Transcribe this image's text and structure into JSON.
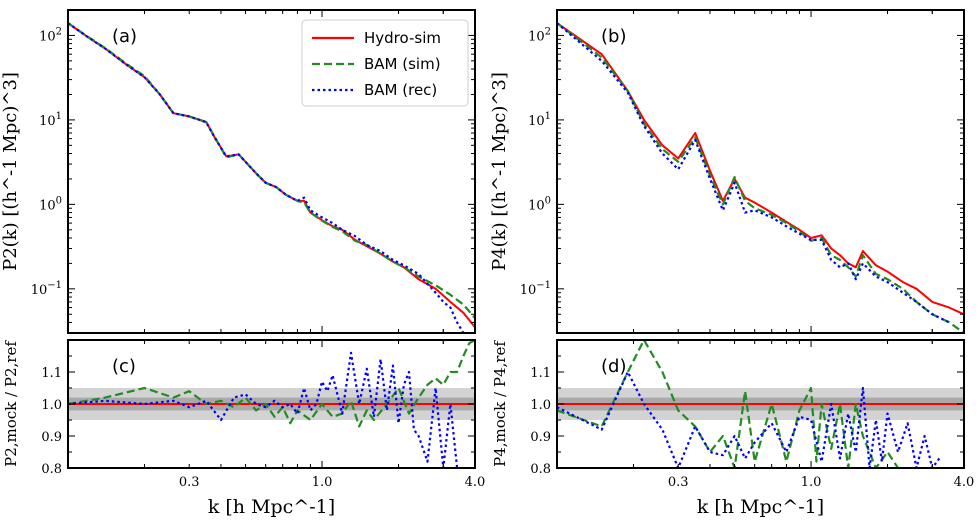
{
  "chart_data": [
    {
      "id": "a",
      "type": "line",
      "panel_label": "(a)",
      "x_scale": "log",
      "y_scale": "log",
      "xlim": [
        0.1,
        4.0
      ],
      "ylim": [
        0.03,
        200
      ],
      "ylabel": "P2(k) [(h^-1 Mpc)^3]",
      "y_ticks": [
        {
          "v": 100,
          "b": "10",
          "e": "2"
        },
        {
          "v": 10,
          "b": "10",
          "e": "1"
        },
        {
          "v": 1,
          "b": "10",
          "e": "0"
        },
        {
          "v": 0.1,
          "b": "10",
          "e": "−1"
        }
      ],
      "legend": {
        "position": "top-right",
        "entries": [
          "Hydro-sim",
          "BAM (sim)",
          "BAM (rec)"
        ]
      },
      "series": [
        {
          "name": "Hydro-sim",
          "color": "#ff0000",
          "style": "solid",
          "x": [
            0.1,
            0.12,
            0.14,
            0.17,
            0.2,
            0.23,
            0.26,
            0.3,
            0.35,
            0.38,
            0.42,
            0.47,
            0.52,
            0.56,
            0.6,
            0.66,
            0.72,
            0.8,
            0.85,
            0.9,
            1.0,
            1.1,
            1.2,
            1.35,
            1.5,
            1.7,
            1.9,
            2.1,
            2.4,
            2.8,
            3.2,
            3.6,
            4.0
          ],
          "y": [
            140,
            95,
            70,
            45,
            32,
            20,
            12,
            11,
            9.5,
            6,
            3.7,
            3.9,
            2.8,
            2.2,
            1.8,
            1.6,
            1.3,
            1.1,
            1.1,
            0.8,
            0.65,
            0.55,
            0.5,
            0.38,
            0.32,
            0.26,
            0.21,
            0.18,
            0.13,
            0.1,
            0.07,
            0.052,
            0.035
          ]
        },
        {
          "name": "BAM (sim)",
          "color": "#228b22",
          "style": "dashed",
          "x": [
            0.1,
            0.12,
            0.14,
            0.17,
            0.2,
            0.23,
            0.26,
            0.3,
            0.35,
            0.38,
            0.42,
            0.47,
            0.52,
            0.56,
            0.6,
            0.66,
            0.72,
            0.8,
            0.85,
            0.9,
            1.0,
            1.1,
            1.2,
            1.35,
            1.5,
            1.7,
            1.9,
            2.1,
            2.4,
            2.8,
            3.2,
            3.6,
            4.0
          ],
          "y": [
            140,
            96,
            71,
            46,
            33,
            20,
            12,
            11,
            9.4,
            6.1,
            3.6,
            3.9,
            2.8,
            2.2,
            1.8,
            1.6,
            1.3,
            1.1,
            1.05,
            0.8,
            0.64,
            0.54,
            0.48,
            0.37,
            0.33,
            0.26,
            0.21,
            0.18,
            0.14,
            0.11,
            0.085,
            0.065,
            0.045
          ]
        },
        {
          "name": "BAM (rec)",
          "color": "#0000ff",
          "style": "dotted",
          "x": [
            0.1,
            0.12,
            0.14,
            0.17,
            0.2,
            0.23,
            0.26,
            0.3,
            0.35,
            0.38,
            0.42,
            0.47,
            0.52,
            0.56,
            0.6,
            0.66,
            0.72,
            0.8,
            0.85,
            0.9,
            1.0,
            1.1,
            1.2,
            1.35,
            1.5,
            1.7,
            1.9,
            2.1,
            2.4,
            2.8,
            3.0,
            3.2,
            3.4,
            3.6
          ],
          "y": [
            140,
            95,
            70,
            45,
            32,
            20,
            12,
            11,
            9.4,
            6,
            3.7,
            3.9,
            2.8,
            2.2,
            1.8,
            1.6,
            1.3,
            1.1,
            1.2,
            0.85,
            0.7,
            0.6,
            0.5,
            0.42,
            0.33,
            0.28,
            0.22,
            0.19,
            0.15,
            0.09,
            0.07,
            0.06,
            0.04,
            0.03
          ]
        }
      ]
    },
    {
      "id": "b",
      "type": "line",
      "panel_label": "(b)",
      "x_scale": "log",
      "y_scale": "log",
      "xlim": [
        0.1,
        4.0
      ],
      "ylim": [
        0.03,
        200
      ],
      "ylabel": "P4(k) [(h^-1 Mpc)^3]",
      "y_ticks": [
        {
          "v": 100,
          "b": "10",
          "e": "2"
        },
        {
          "v": 10,
          "b": "10",
          "e": "1"
        },
        {
          "v": 1,
          "b": "10",
          "e": "0"
        },
        {
          "v": 0.1,
          "b": "10",
          "e": "−1"
        }
      ],
      "series": [
        {
          "name": "Hydro-sim",
          "color": "#ff0000",
          "style": "solid",
          "x": [
            0.1,
            0.15,
            0.19,
            0.22,
            0.26,
            0.3,
            0.35,
            0.4,
            0.45,
            0.5,
            0.55,
            0.6,
            0.7,
            0.8,
            0.9,
            1.0,
            1.1,
            1.2,
            1.3,
            1.4,
            1.5,
            1.6,
            1.8,
            2.0,
            2.3,
            2.6,
            3.0,
            3.5,
            4.0
          ],
          "y": [
            140,
            60,
            22,
            10,
            5,
            3.5,
            7,
            2.5,
            1.1,
            2,
            1.2,
            1.05,
            0.8,
            0.62,
            0.5,
            0.4,
            0.43,
            0.3,
            0.25,
            0.2,
            0.18,
            0.28,
            0.19,
            0.16,
            0.12,
            0.1,
            0.07,
            0.06,
            0.05
          ]
        },
        {
          "name": "BAM (sim)",
          "color": "#228b22",
          "style": "dashed",
          "x": [
            0.1,
            0.15,
            0.19,
            0.22,
            0.26,
            0.3,
            0.35,
            0.4,
            0.45,
            0.5,
            0.55,
            0.6,
            0.7,
            0.8,
            0.9,
            1.0,
            1.1,
            1.2,
            1.3,
            1.4,
            1.5,
            1.6,
            1.8,
            2.0,
            2.3,
            2.6,
            3.0,
            3.5,
            4.0
          ],
          "y": [
            140,
            55,
            22,
            9,
            4.5,
            3.2,
            6.2,
            2.2,
            1.0,
            2.1,
            1.1,
            0.9,
            0.75,
            0.6,
            0.48,
            0.37,
            0.4,
            0.25,
            0.22,
            0.18,
            0.14,
            0.25,
            0.15,
            0.13,
            0.1,
            0.07,
            0.05,
            0.04,
            0.03
          ]
        },
        {
          "name": "BAM (rec)",
          "color": "#0000ff",
          "style": "dotted",
          "x": [
            0.1,
            0.15,
            0.19,
            0.22,
            0.26,
            0.3,
            0.35,
            0.4,
            0.45,
            0.5,
            0.55,
            0.6,
            0.7,
            0.8,
            0.9,
            1.0,
            1.1,
            1.2,
            1.3,
            1.4,
            1.5,
            1.6,
            1.8,
            2.0,
            2.3,
            2.6,
            3.0,
            3.5
          ],
          "y": [
            140,
            50,
            21,
            8.5,
            4,
            2.6,
            5.8,
            2.0,
            0.85,
            1.8,
            0.8,
            0.85,
            0.7,
            0.55,
            0.45,
            0.38,
            0.38,
            0.22,
            0.18,
            0.2,
            0.13,
            0.2,
            0.14,
            0.12,
            0.09,
            0.07,
            0.05,
            0.04
          ]
        }
      ]
    },
    {
      "id": "c",
      "type": "line",
      "panel_label": "(c)",
      "x_scale": "log",
      "y_scale": "linear",
      "xlim": [
        0.1,
        4.0
      ],
      "ylim": [
        0.8,
        1.2
      ],
      "xlabel": "k [h Mpc^-1]",
      "ylabel": "P2,mock / P2,ref",
      "x_ticks": [
        0.3,
        1.0,
        4.0
      ],
      "x_tick_labels": [
        "0.3",
        "1.0",
        "4.0"
      ],
      "y_ticks": [
        0.8,
        0.9,
        1.0,
        1.1
      ],
      "y_tick_labels": [
        "0.8",
        "0.9",
        "1.0",
        "1.1"
      ],
      "bands": [
        {
          "range": [
            0.95,
            1.05
          ],
          "color": "#d3d3d3"
        },
        {
          "range": [
            0.98,
            1.02
          ],
          "color": "#a9a9a9"
        }
      ],
      "series": [
        {
          "name": "Hydro-sim",
          "color": "#ff0000",
          "style": "solid",
          "x": [
            0.1,
            4.0
          ],
          "y": [
            1.0,
            1.0
          ]
        },
        {
          "name": "BAM (sim)",
          "color": "#228b22",
          "style": "dashed",
          "x": [
            0.1,
            0.14,
            0.2,
            0.26,
            0.3,
            0.35,
            0.4,
            0.45,
            0.5,
            0.55,
            0.6,
            0.65,
            0.7,
            0.75,
            0.8,
            0.9,
            1.0,
            1.1,
            1.2,
            1.3,
            1.4,
            1.5,
            1.6,
            1.8,
            2.0,
            2.2,
            2.4,
            2.6,
            2.8,
            3.0,
            3.2,
            3.4,
            3.6,
            3.8,
            4.0
          ],
          "y": [
            1.0,
            1.02,
            1.05,
            1.02,
            1.04,
            1.0,
            1.01,
            0.99,
            1.02,
            0.98,
            1.0,
            0.96,
            0.99,
            0.94,
            0.98,
            0.95,
            1.0,
            0.96,
            0.97,
            1.01,
            0.93,
            0.98,
            0.95,
            1.0,
            1.05,
            0.97,
            1.02,
            1.06,
            1.08,
            1.06,
            1.1,
            1.1,
            1.15,
            1.19,
            1.2
          ]
        },
        {
          "name": "BAM (rec)",
          "color": "#0000ff",
          "style": "dotted",
          "x": [
            0.1,
            0.14,
            0.2,
            0.26,
            0.3,
            0.35,
            0.4,
            0.45,
            0.5,
            0.55,
            0.6,
            0.65,
            0.7,
            0.75,
            0.8,
            0.85,
            0.9,
            0.95,
            1.0,
            1.05,
            1.1,
            1.2,
            1.3,
            1.4,
            1.5,
            1.6,
            1.7,
            1.8,
            1.9,
            2.0,
            2.1,
            2.2,
            2.3,
            2.4,
            2.6,
            2.8,
            3.0,
            3.2,
            3.4
          ],
          "y": [
            1.0,
            1.01,
            1.0,
            1.01,
            0.99,
            1.01,
            0.95,
            1.02,
            1.03,
            1.0,
            0.99,
            1.01,
            0.99,
            1.0,
            0.97,
            1.05,
            0.98,
            1.0,
            1.07,
            1.04,
            1.09,
            0.97,
            1.16,
            1.0,
            1.11,
            0.96,
            1.14,
            0.98,
            1.12,
            0.94,
            1.06,
            1.1,
            0.92,
            0.9,
            0.82,
            1.05,
            0.8,
            1.0,
            0.8
          ]
        }
      ]
    },
    {
      "id": "d",
      "type": "line",
      "panel_label": "(d)",
      "x_scale": "log",
      "y_scale": "linear",
      "xlim": [
        0.1,
        4.0
      ],
      "ylim": [
        0.8,
        1.2
      ],
      "xlabel": "k [h Mpc^-1]",
      "ylabel": "P4,mock / P4,ref",
      "x_ticks": [
        0.3,
        1.0,
        4.0
      ],
      "x_tick_labels": [
        "0.3",
        "1.0",
        "4.0"
      ],
      "y_ticks": [
        0.8,
        0.9,
        1.0,
        1.1
      ],
      "y_tick_labels": [
        "0.8",
        "0.9",
        "1.0",
        "1.1"
      ],
      "bands": [
        {
          "range": [
            0.95,
            1.05
          ],
          "color": "#d3d3d3"
        },
        {
          "range": [
            0.98,
            1.02
          ],
          "color": "#a9a9a9"
        }
      ],
      "series": [
        {
          "name": "Hydro-sim",
          "color": "#ff0000",
          "style": "solid",
          "x": [
            0.1,
            4.0
          ],
          "y": [
            1.0,
            1.0
          ]
        },
        {
          "name": "BAM (sim)",
          "color": "#228b22",
          "style": "dashed",
          "x": [
            0.1,
            0.15,
            0.19,
            0.22,
            0.26,
            0.3,
            0.35,
            0.4,
            0.45,
            0.5,
            0.55,
            0.6,
            0.7,
            0.8,
            0.9,
            1.0,
            1.05,
            1.1,
            1.2,
            1.3,
            1.4,
            1.5,
            1.6,
            1.8,
            2.0,
            2.2
          ],
          "y": [
            0.98,
            0.93,
            1.1,
            1.2,
            1.1,
            0.98,
            0.93,
            0.85,
            0.9,
            0.8,
            1.04,
            0.82,
            1.0,
            0.82,
            0.98,
            1.05,
            0.82,
            1.0,
            0.86,
            1.0,
            0.8,
            1.0,
            0.9,
            0.8,
            0.85,
            0.8
          ]
        },
        {
          "name": "BAM (rec)",
          "color": "#0000ff",
          "style": "dotted",
          "x": [
            0.1,
            0.15,
            0.19,
            0.22,
            0.26,
            0.3,
            0.35,
            0.4,
            0.45,
            0.5,
            0.55,
            0.6,
            0.7,
            0.8,
            0.9,
            1.0,
            1.1,
            1.2,
            1.3,
            1.4,
            1.5,
            1.6,
            1.7,
            1.8,
            1.9,
            2.0,
            2.2,
            2.4,
            2.6,
            2.8,
            3.0,
            3.2
          ],
          "y": [
            0.99,
            0.92,
            1.1,
            1.0,
            0.92,
            0.8,
            0.93,
            0.85,
            0.84,
            0.9,
            0.83,
            0.88,
            0.94,
            0.85,
            0.96,
            0.95,
            0.82,
            1.0,
            0.83,
            0.97,
            0.85,
            1.05,
            0.8,
            0.95,
            0.82,
            0.97,
            0.85,
            0.94,
            0.8,
            0.9,
            0.8,
            0.83
          ]
        }
      ]
    }
  ]
}
